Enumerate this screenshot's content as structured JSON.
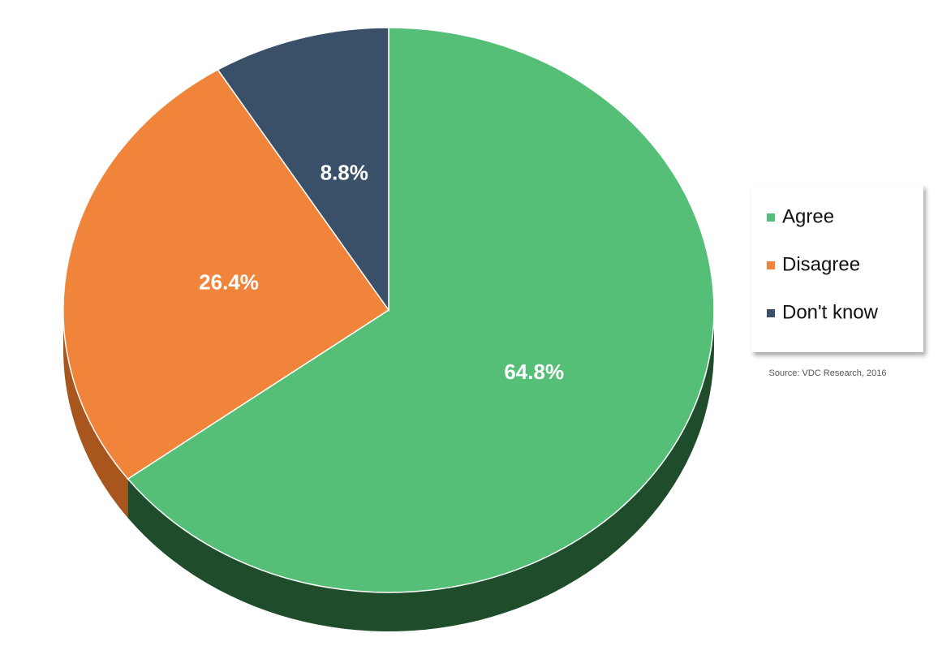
{
  "chart_data": {
    "type": "pie",
    "categories": [
      "Agree",
      "Disagree",
      "Don't know"
    ],
    "values": [
      64.8,
      26.4,
      8.8
    ],
    "value_labels": [
      "64.8%",
      "26.4%",
      "8.8%"
    ],
    "colors": [
      "#55bf77",
      "#f0843a",
      "#3a5068"
    ],
    "side_colors": [
      "#1f4d2c",
      "#a9561e",
      "#25364a"
    ],
    "legend": "right",
    "source": "Source: VDC Research, 2016"
  }
}
